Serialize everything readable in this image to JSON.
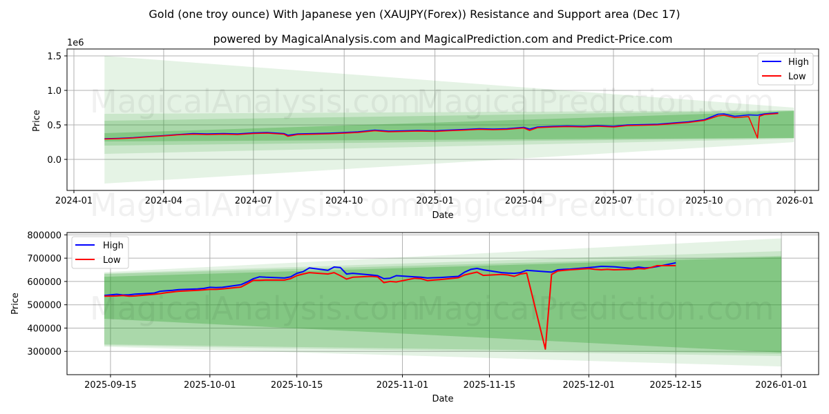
{
  "figure": {
    "suptitle": "Gold (one troy ounce) With Japanese yen (XAUJPY(Forex)) Resistance and Support area (Dec 17)",
    "subtitle": "powered by MagicalAnalysis.com and MagicalPrediction.com and Predict-Price.com",
    "watermarks": [
      "MagicalAnalysis.com",
      "MagicalPrediction.com"
    ],
    "colors": {
      "high": "#0000ff",
      "low": "#ff0000",
      "band": "#2ca02c",
      "grid": "#b0b0b0"
    }
  },
  "chart_data": [
    {
      "type": "line",
      "panel": "top",
      "title": "powered by MagicalAnalysis.com and MagicalPrediction.com and Predict-Price.com",
      "xlabel": "Date",
      "ylabel": "Price",
      "y_offset_label": "1e6",
      "xlim": [
        "2023-12-25",
        "2026-01-25"
      ],
      "ylim": [
        -0.45,
        1.6
      ],
      "x_ticks": [
        "2024-01",
        "2024-04",
        "2024-07",
        "2024-10",
        "2025-01",
        "2025-04",
        "2025-07",
        "2025-10",
        "2026-01"
      ],
      "y_ticks": [
        0.0,
        0.5,
        1.0,
        1.5
      ],
      "y_tick_labels": [
        "0.0",
        "0.5",
        "1.0",
        "1.5"
      ],
      "grid": true,
      "legend": {
        "position": "upper right",
        "entries": [
          "High",
          "Low"
        ]
      },
      "bands": [
        {
          "x": [
            "2024-02-01",
            "2025-12-31"
          ],
          "upper": [
            1.5,
            0.75
          ],
          "lower": [
            -0.35,
            0.25
          ],
          "opacity": 0.12
        },
        {
          "x": [
            "2024-02-01",
            "2025-12-31"
          ],
          "upper": [
            0.66,
            0.71
          ],
          "lower": [
            0.08,
            0.3
          ],
          "opacity": 0.15
        },
        {
          "x": [
            "2024-02-01",
            "2025-12-31"
          ],
          "upper": [
            0.56,
            0.71
          ],
          "lower": [
            0.2,
            0.31
          ],
          "opacity": 0.2
        },
        {
          "x": [
            "2024-02-01",
            "2025-12-31"
          ],
          "upper": [
            0.38,
            0.7
          ],
          "lower": [
            0.26,
            0.31
          ],
          "opacity": 0.3
        }
      ],
      "series": [
        {
          "name": "High",
          "x": [
            "2024-02-01",
            "2024-02-15",
            "2024-03-01",
            "2024-03-15",
            "2024-04-01",
            "2024-04-15",
            "2024-05-01",
            "2024-05-15",
            "2024-06-01",
            "2024-06-15",
            "2024-07-01",
            "2024-07-15",
            "2024-08-01",
            "2024-08-05",
            "2024-08-15",
            "2024-09-01",
            "2024-09-15",
            "2024-10-01",
            "2024-10-15",
            "2024-11-01",
            "2024-11-15",
            "2024-12-01",
            "2024-12-15",
            "2025-01-01",
            "2025-01-15",
            "2025-02-01",
            "2025-02-15",
            "2025-03-01",
            "2025-03-15",
            "2025-04-01",
            "2025-04-07",
            "2025-04-15",
            "2025-05-01",
            "2025-05-15",
            "2025-06-01",
            "2025-06-15",
            "2025-07-01",
            "2025-07-15",
            "2025-08-01",
            "2025-08-15",
            "2025-09-01",
            "2025-09-15",
            "2025-10-01",
            "2025-10-15",
            "2025-10-21",
            "2025-11-01",
            "2025-11-15",
            "2025-11-24",
            "2025-12-01",
            "2025-12-15"
          ],
          "values": [
            0.3,
            0.305,
            0.315,
            0.33,
            0.345,
            0.36,
            0.375,
            0.37,
            0.375,
            0.37,
            0.385,
            0.39,
            0.375,
            0.35,
            0.37,
            0.375,
            0.38,
            0.39,
            0.4,
            0.425,
            0.41,
            0.415,
            0.42,
            0.415,
            0.425,
            0.435,
            0.445,
            0.44,
            0.445,
            0.465,
            0.44,
            0.47,
            0.48,
            0.485,
            0.48,
            0.49,
            0.48,
            0.5,
            0.505,
            0.51,
            0.53,
            0.545,
            0.575,
            0.655,
            0.66,
            0.625,
            0.645,
            0.64,
            0.66,
            0.675
          ]
        },
        {
          "name": "Low",
          "x": [
            "2024-02-01",
            "2024-02-15",
            "2024-03-01",
            "2024-03-15",
            "2024-04-01",
            "2024-04-15",
            "2024-05-01",
            "2024-05-15",
            "2024-06-01",
            "2024-06-15",
            "2024-07-01",
            "2024-07-15",
            "2024-08-01",
            "2024-08-05",
            "2024-08-15",
            "2024-09-01",
            "2024-09-15",
            "2024-10-01",
            "2024-10-15",
            "2024-11-01",
            "2024-11-15",
            "2024-12-01",
            "2024-12-15",
            "2025-01-01",
            "2025-01-15",
            "2025-02-01",
            "2025-02-15",
            "2025-03-01",
            "2025-03-15",
            "2025-04-01",
            "2025-04-07",
            "2025-04-15",
            "2025-05-01",
            "2025-05-15",
            "2025-06-01",
            "2025-06-15",
            "2025-07-01",
            "2025-07-15",
            "2025-08-01",
            "2025-08-15",
            "2025-09-01",
            "2025-09-15",
            "2025-10-01",
            "2025-10-15",
            "2025-10-21",
            "2025-11-01",
            "2025-11-15",
            "2025-11-24",
            "2025-11-26",
            "2025-12-01",
            "2025-12-15"
          ],
          "values": [
            0.295,
            0.3,
            0.31,
            0.325,
            0.34,
            0.355,
            0.365,
            0.36,
            0.365,
            0.36,
            0.375,
            0.38,
            0.365,
            0.335,
            0.36,
            0.365,
            0.37,
            0.38,
            0.39,
            0.415,
            0.4,
            0.405,
            0.41,
            0.405,
            0.415,
            0.425,
            0.435,
            0.43,
            0.435,
            0.455,
            0.42,
            0.46,
            0.47,
            0.475,
            0.47,
            0.48,
            0.47,
            0.49,
            0.495,
            0.5,
            0.52,
            0.535,
            0.565,
            0.63,
            0.64,
            0.605,
            0.62,
            0.31,
            0.625,
            0.65,
            0.665
          ]
        }
      ]
    },
    {
      "type": "line",
      "panel": "bottom",
      "xlabel": "Date",
      "ylabel": "Price",
      "xlim": [
        "2025-09-08",
        "2026-01-07"
      ],
      "ylim": [
        200000,
        810000
      ],
      "x_ticks": [
        "2025-09-15",
        "2025-10-01",
        "2025-10-15",
        "2025-11-01",
        "2025-11-15",
        "2025-12-01",
        "2025-12-15",
        "2026-01-01"
      ],
      "y_ticks": [
        300000,
        400000,
        500000,
        600000,
        700000,
        800000
      ],
      "y_tick_labels": [
        "300000",
        "400000",
        "500000",
        "600000",
        "700000",
        "800000"
      ],
      "grid": true,
      "legend": {
        "position": "upper left",
        "entries": [
          "High",
          "Low"
        ]
      },
      "bands": [
        {
          "x": [
            "2025-09-14",
            "2026-01-01"
          ],
          "upper": [
            640000,
            785000
          ],
          "lower": [
            320000,
            235000
          ],
          "opacity": 0.12
        },
        {
          "x": [
            "2025-09-14",
            "2026-01-01"
          ],
          "upper": [
            635000,
            730000
          ],
          "lower": [
            325000,
            280000
          ],
          "opacity": 0.15
        },
        {
          "x": [
            "2025-09-14",
            "2026-01-01"
          ],
          "upper": [
            632000,
            710000
          ],
          "lower": [
            330000,
            290000
          ],
          "opacity": 0.2
        },
        {
          "x": [
            "2025-09-14",
            "2026-01-01"
          ],
          "upper": [
            620000,
            705000
          ],
          "lower": [
            440000,
            295000
          ],
          "opacity": 0.3
        }
      ],
      "series": [
        {
          "name": "High",
          "x": [
            "2025-09-14",
            "2025-09-16",
            "2025-09-17",
            "2025-09-18",
            "2025-09-19",
            "2025-09-22",
            "2025-09-23",
            "2025-09-24",
            "2025-09-25",
            "2025-09-26",
            "2025-09-29",
            "2025-09-30",
            "2025-10-01",
            "2025-10-02",
            "2025-10-03",
            "2025-10-06",
            "2025-10-07",
            "2025-10-08",
            "2025-10-09",
            "2025-10-10",
            "2025-10-13",
            "2025-10-14",
            "2025-10-15",
            "2025-10-16",
            "2025-10-17",
            "2025-10-20",
            "2025-10-21",
            "2025-10-22",
            "2025-10-23",
            "2025-10-24",
            "2025-10-27",
            "2025-10-28",
            "2025-10-29",
            "2025-10-30",
            "2025-10-31",
            "2025-11-03",
            "2025-11-04",
            "2025-11-05",
            "2025-11-06",
            "2025-11-07",
            "2025-11-10",
            "2025-11-11",
            "2025-11-12",
            "2025-11-13",
            "2025-11-14",
            "2025-11-17",
            "2025-11-18",
            "2025-11-19",
            "2025-11-20",
            "2025-11-21",
            "2025-11-24",
            "2025-11-25",
            "2025-11-26",
            "2025-11-27",
            "2025-11-28",
            "2025-12-01",
            "2025-12-02",
            "2025-12-03",
            "2025-12-04",
            "2025-12-05",
            "2025-12-08",
            "2025-12-09",
            "2025-12-10",
            "2025-12-11",
            "2025-12-12",
            "2025-12-15"
          ],
          "values": [
            540000,
            545000,
            542000,
            543000,
            546000,
            550000,
            558000,
            560000,
            562000,
            565000,
            568000,
            570000,
            575000,
            574000,
            575000,
            586000,
            598000,
            612000,
            620000,
            618000,
            615000,
            620000,
            635000,
            642000,
            658000,
            648000,
            662000,
            660000,
            632000,
            635000,
            628000,
            625000,
            612000,
            614000,
            625000,
            620000,
            618000,
            615000,
            616000,
            617000,
            622000,
            640000,
            652000,
            656000,
            650000,
            638000,
            636000,
            635000,
            638000,
            648000,
            642000,
            640000,
            650000,
            652000,
            653000,
            660000,
            662000,
            665000,
            664000,
            663000,
            656000,
            662000,
            658000,
            660000,
            664000,
            680000
          ]
        },
        {
          "name": "Low",
          "x": [
            "2025-09-14",
            "2025-09-16",
            "2025-09-17",
            "2025-09-18",
            "2025-09-19",
            "2025-09-22",
            "2025-09-23",
            "2025-09-24",
            "2025-09-25",
            "2025-09-26",
            "2025-09-29",
            "2025-09-30",
            "2025-10-01",
            "2025-10-02",
            "2025-10-03",
            "2025-10-06",
            "2025-10-07",
            "2025-10-08",
            "2025-10-09",
            "2025-10-10",
            "2025-10-13",
            "2025-10-14",
            "2025-10-15",
            "2025-10-16",
            "2025-10-17",
            "2025-10-20",
            "2025-10-21",
            "2025-10-22",
            "2025-10-23",
            "2025-10-24",
            "2025-10-27",
            "2025-10-28",
            "2025-10-29",
            "2025-10-30",
            "2025-10-31",
            "2025-11-03",
            "2025-11-04",
            "2025-11-05",
            "2025-11-06",
            "2025-11-07",
            "2025-11-10",
            "2025-11-11",
            "2025-11-12",
            "2025-11-13",
            "2025-11-14",
            "2025-11-17",
            "2025-11-18",
            "2025-11-19",
            "2025-11-20",
            "2025-11-21",
            "2025-11-24",
            "2025-11-25",
            "2025-11-26",
            "2025-11-27",
            "2025-11-28",
            "2025-12-01",
            "2025-12-02",
            "2025-12-03",
            "2025-12-04",
            "2025-12-05",
            "2025-12-08",
            "2025-12-09",
            "2025-12-10",
            "2025-12-11",
            "2025-12-12",
            "2025-12-15"
          ],
          "values": [
            537000,
            538000,
            540000,
            537000,
            538000,
            545000,
            548000,
            552000,
            555000,
            558000,
            562000,
            564000,
            566000,
            566000,
            568000,
            576000,
            590000,
            605000,
            605000,
            606000,
            606000,
            612000,
            625000,
            632000,
            638000,
            632000,
            638000,
            625000,
            610000,
            618000,
            622000,
            620000,
            595000,
            600000,
            598000,
            614000,
            612000,
            604000,
            606000,
            608000,
            616000,
            628000,
            634000,
            640000,
            626000,
            630000,
            628000,
            622000,
            632000,
            636000,
            310000,
            630000,
            645000,
            648000,
            650000,
            655000,
            652000,
            650000,
            652000,
            650000,
            652000,
            655000,
            654000,
            660000,
            668000,
            668000
          ]
        }
      ]
    }
  ]
}
